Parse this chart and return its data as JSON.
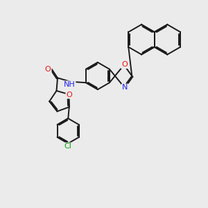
{
  "bg_color": "#ebebeb",
  "bond_color": "#1a1a1a",
  "bond_width": 1.4,
  "dbo": 0.055,
  "atom_colors": {
    "O": "#ee1111",
    "N": "#2222ee",
    "Cl": "#00aa00",
    "H": "#777777"
  },
  "font_size": 8.0,
  "fig_w": 3.0,
  "fig_h": 3.0,
  "dpi": 100
}
